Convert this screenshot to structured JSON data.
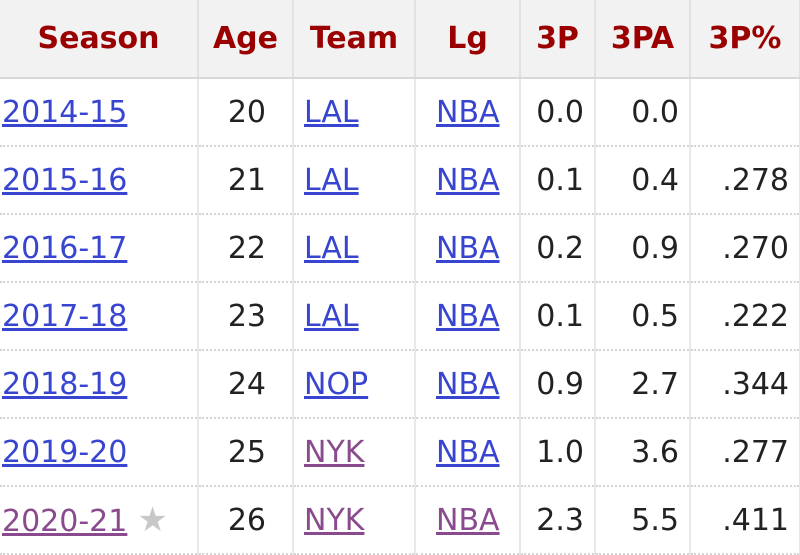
{
  "table": {
    "header": [
      "Season",
      "Age",
      "Team",
      "Lg",
      "3P",
      "3PA",
      "3P%"
    ],
    "rows": [
      [
        "2014-15",
        "20",
        "LAL",
        "NBA",
        "0.0",
        "0.0",
        null
      ],
      [
        "2015-16",
        "21",
        "LAL",
        "NBA",
        "0.1",
        "0.4",
        ".278"
      ],
      [
        "2016-17",
        "22",
        "LAL",
        "NBA",
        "0.2",
        "0.9",
        ".270"
      ],
      [
        "2017-18",
        "23",
        "LAL",
        "NBA",
        "0.1",
        "0.5",
        ".222"
      ],
      [
        "2018-19",
        "24",
        "NOP",
        "NBA",
        "0.9",
        "2.7",
        ".344"
      ],
      [
        "2019-20",
        "25",
        "NYK",
        "NBA",
        "1.0",
        "3.6",
        ".277"
      ],
      [
        "2020-21",
        "26",
        "NYK",
        "NBA",
        "2.3",
        "5.5",
        ".411"
      ]
    ]
  }
}
